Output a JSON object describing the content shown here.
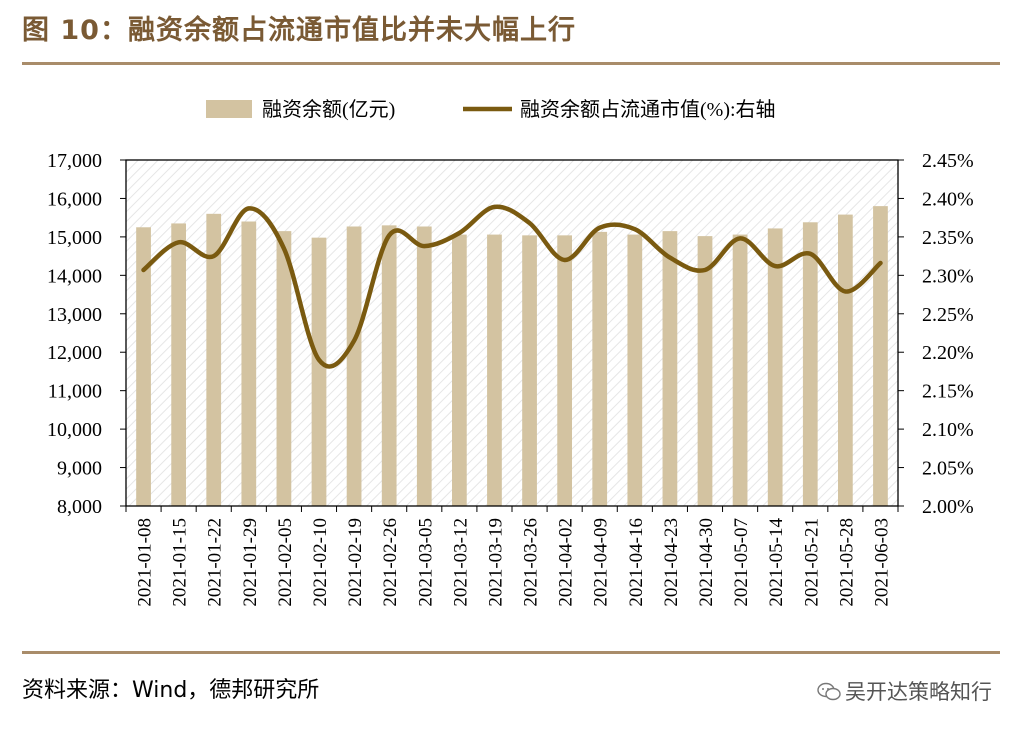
{
  "header": {
    "title": "图 10：融资余额占流通市值比并未大幅上行"
  },
  "footer": {
    "source": "资料来源：Wind，德邦研究所",
    "watermark": "吴开达策略知行"
  },
  "colors": {
    "bar": "#d3c3a1",
    "line": "#7a5a10",
    "rule": "#a98c6a",
    "title": "#7a5a34",
    "plot_bg_hatch": "#e9e9e9"
  },
  "chart_data": {
    "type": "bar",
    "categories": [
      "2021-01-08",
      "2021-01-15",
      "2021-01-22",
      "2021-01-29",
      "2021-02-05",
      "2021-02-10",
      "2021-02-19",
      "2021-02-26",
      "2021-03-05",
      "2021-03-12",
      "2021-03-19",
      "2021-03-26",
      "2021-04-02",
      "2021-04-09",
      "2021-04-16",
      "2021-04-23",
      "2021-04-30",
      "2021-05-07",
      "2021-05-14",
      "2021-05-21",
      "2021-05-28",
      "2021-06-03"
    ],
    "series": [
      {
        "name": "融资余额(亿元)",
        "type": "bar",
        "axis": "left",
        "values": [
          15250,
          15350,
          15600,
          15400,
          15150,
          14980,
          15270,
          15300,
          15270,
          15060,
          15060,
          15040,
          15040,
          15130,
          15060,
          15150,
          15020,
          15060,
          15220,
          15380,
          15580,
          15800
        ]
      },
      {
        "name": "融资余额占流通市值(%):右轴",
        "type": "line",
        "axis": "right",
        "smooth": true,
        "values": [
          2.307,
          2.343,
          2.325,
          2.387,
          2.335,
          2.19,
          2.215,
          2.352,
          2.338,
          2.355,
          2.389,
          2.368,
          2.32,
          2.362,
          2.36,
          2.323,
          2.307,
          2.348,
          2.312,
          2.328,
          2.279,
          2.316
        ]
      }
    ],
    "y_left": {
      "min": 8000,
      "max": 17000,
      "step": 1000,
      "tick_labels": [
        "8,000",
        "9,000",
        "10,000",
        "11,000",
        "12,000",
        "13,000",
        "14,000",
        "15,000",
        "16,000",
        "17,000"
      ]
    },
    "y_right": {
      "min": 2.0,
      "max": 2.45,
      "step": 0.05,
      "tick_labels": [
        "2.00%",
        "2.05%",
        "2.10%",
        "2.15%",
        "2.20%",
        "2.25%",
        "2.30%",
        "2.35%",
        "2.40%",
        "2.45%"
      ]
    },
    "legend": {
      "position": "top",
      "items": [
        "融资余额(亿元)",
        "融资余额占流通市值(%):右轴"
      ]
    },
    "grid": false
  }
}
